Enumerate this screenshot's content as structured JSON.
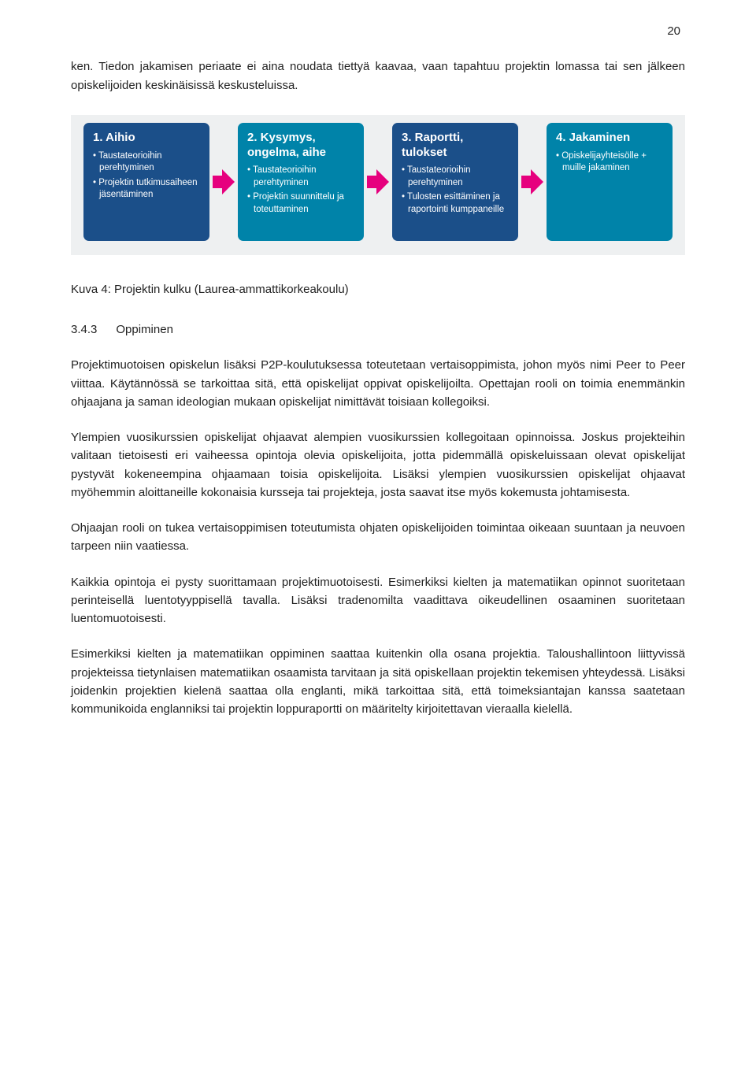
{
  "page_number": "20",
  "paragraphs": {
    "intro": "ken. Tiedon jakamisen periaate ei aina noudata tiettyä kaavaa, vaan tapahtuu projektin lomassa tai sen jälkeen opiskelijoiden keskinäisissä keskusteluissa.",
    "caption": "Kuva 4: Projektin kulku (Laurea-ammattikorkeakoulu)",
    "section_number": "3.4.3",
    "section_title": "Oppiminen",
    "p1": "Projektimuotoisen opiskelun lisäksi P2P-koulutuksessa toteutetaan vertaisoppimista, johon myös nimi Peer to Peer viittaa. Käytännössä se tarkoittaa sitä, että opiskelijat oppivat opiskelijoilta. Opettajan rooli on toimia enemmänkin ohjaajana ja saman ideologian mukaan opiskelijat nimittävät toisiaan kollegoiksi.",
    "p2": "Ylempien vuosikurssien opiskelijat ohjaavat alempien vuosikurssien kollegoitaan opinnoissa. Joskus projekteihin valitaan tietoisesti eri vaiheessa opintoja olevia opiskelijoita, jotta pidemmällä opiskeluissaan olevat opiskelijat pystyvät kokeneempina ohjaamaan toisia opiskelijoita. Lisäksi ylempien vuosikurssien opiskelijat ohjaavat myöhemmin aloittaneille kokonaisia kursseja tai projekteja, josta saavat itse myös kokemusta johtamisesta.",
    "p3": "Ohjaajan rooli on tukea vertaisoppimisen toteutumista ohjaten opiskelijoiden toimintaa oikeaan suuntaan ja neuvoen tarpeen niin vaatiessa.",
    "p4": "Kaikkia opintoja ei pysty suorittamaan projektimuotoisesti. Esimerkiksi kielten ja matematiikan opinnot suoritetaan perinteisellä luentotyyppisellä tavalla. Lisäksi tradenomilta vaadittava oikeudellinen osaaminen suoritetaan luentomuotoisesti.",
    "p5": "Esimerkiksi kielten ja matematiikan oppiminen saattaa kuitenkin olla osana projektia. Taloushallintoon liittyvissä projekteissa tietynlaisen matematiikan osaamista tarvitaan ja sitä opiskellaan projektin tekemisen yhteydessä. Lisäksi joidenkin projektien kielenä saattaa olla englanti, mikä tarkoittaa sitä, että toimeksiantajan kanssa saatetaan kommunikoida englanniksi tai projektin loppuraportti on määritelty kirjoitettavan vieraalla kielellä."
  },
  "flow": {
    "background_color": "#eef0f1",
    "arrow_color": "#e6007e",
    "boxes": [
      {
        "title": "1. Aihio",
        "bg": "#1b4f89",
        "items": [
          "Taustateorioihin perehtyminen",
          "Projektin tutkimusaiheen jäsentäminen"
        ]
      },
      {
        "title": "2. Kysymys, ongelma, aihe",
        "bg": "#0083a9",
        "items": [
          "Taustateorioihin perehtyminen",
          "Projektin suunnittelu ja toteuttaminen"
        ]
      },
      {
        "title": "3. Raportti, tulokset",
        "bg": "#1b4f89",
        "items": [
          "Taustateorioihin perehtyminen",
          "Tulosten esittäminen ja raportointi kumppaneille"
        ]
      },
      {
        "title": "4. Jakaminen",
        "bg": "#0083a9",
        "items": [
          "Opiskelijayhteisölle + muille jakaminen"
        ]
      }
    ]
  }
}
